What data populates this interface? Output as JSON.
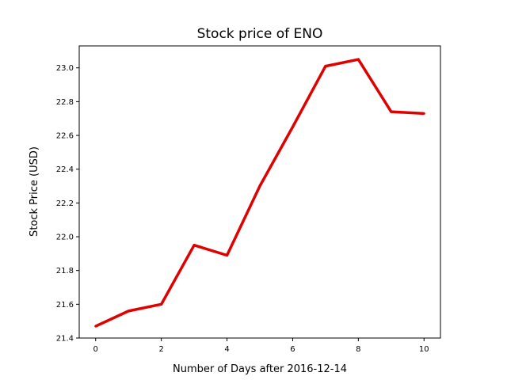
{
  "chart_data": {
    "type": "line",
    "title": "Stock price of ENO",
    "xlabel": "Number of Days after 2016-12-14",
    "ylabel": "Stock Price (USD)",
    "xlim": [
      -0.5,
      10.5
    ],
    "ylim": [
      21.4,
      23.13
    ],
    "x_ticks": [
      0,
      2,
      4,
      6,
      8,
      10
    ],
    "y_ticks": [
      21.4,
      21.6,
      21.8,
      22.0,
      22.2,
      22.4,
      22.6,
      22.8,
      23.0
    ],
    "x_tick_labels": [
      "0",
      "2",
      "4",
      "6",
      "8",
      "10"
    ],
    "y_tick_labels": [
      "21.4",
      "21.6",
      "21.8",
      "22.0",
      "22.2",
      "22.4",
      "22.6",
      "22.8",
      "23.0"
    ],
    "grid": false,
    "series": [
      {
        "color": "#e00000",
        "x": [
          0,
          1,
          2,
          3,
          4,
          5,
          6,
          7,
          8,
          9,
          10
        ],
        "y": [
          21.47,
          21.56,
          21.6,
          21.95,
          21.89,
          22.3,
          22.65,
          23.01,
          23.05,
          22.74,
          22.73
        ]
      }
    ]
  }
}
